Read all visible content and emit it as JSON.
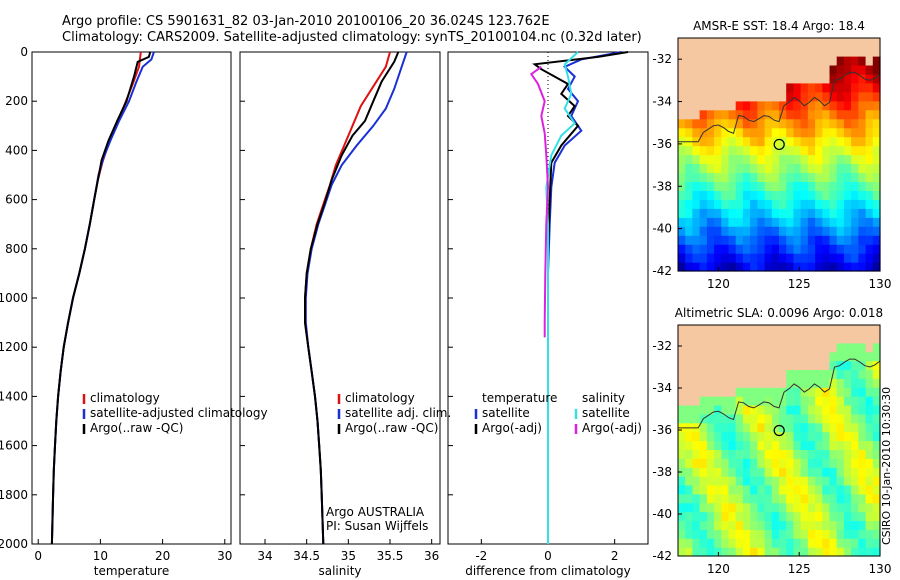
{
  "header": {
    "line1": "Argo profile: CS 5901631_82 03-Jan-2010 20100106_20 36.024S 123.762E",
    "line2": "Climatology: CARS2009. Satellite-adjusted climatology: synTS_20100104.nc (0.32d later)"
  },
  "credit": "CSIRO 10-Jan-2010 10:30:30",
  "colors": {
    "climatology": "#dd1111",
    "satellite": "#1a2fd6",
    "argo": "#000000",
    "sat_salinity": "#33e0e8",
    "argo_adj_salinity": "#dd22dd",
    "land": "#f6c8a2"
  },
  "chart_data": [
    {
      "type": "line",
      "xlabel": "temperature",
      "ylim": [
        2000,
        0
      ],
      "xlim": [
        -1,
        31
      ],
      "xticks": [
        0,
        10,
        20,
        30
      ],
      "yticks": [
        0,
        200,
        400,
        600,
        800,
        1000,
        1200,
        1400,
        1600,
        1800,
        2000
      ],
      "legend": [
        "climatology",
        "satellite-adjusted climatology",
        "Argo(..raw -QC)"
      ],
      "series": [
        {
          "name": "climatology",
          "color": "#dd1111",
          "points": [
            [
              16.5,
              0
            ],
            [
              16.2,
              60
            ],
            [
              15.2,
              130
            ],
            [
              13.8,
              220
            ],
            [
              12.4,
              300
            ],
            [
              11.2,
              380
            ],
            [
              10.3,
              450
            ],
            [
              9.6,
              520
            ],
            [
              9.0,
              600
            ],
            [
              8.3,
              700
            ],
            [
              7.5,
              800
            ],
            [
              6.6,
              900
            ],
            [
              5.6,
              1000
            ],
            [
              4.8,
              1100
            ],
            [
              4.1,
              1200
            ],
            [
              3.6,
              1300
            ],
            [
              3.2,
              1400
            ],
            [
              2.9,
              1500
            ],
            [
              2.7,
              1600
            ],
            [
              2.5,
              1700
            ],
            [
              2.4,
              1800
            ],
            [
              2.3,
              1900
            ],
            [
              2.2,
              2000
            ]
          ]
        },
        {
          "name": "satellite-adjusted climatology",
          "color": "#1a2fd6",
          "points": [
            [
              18.6,
              0
            ],
            [
              18.2,
              30
            ],
            [
              16.8,
              60
            ],
            [
              15.8,
              120
            ],
            [
              14.6,
              200
            ],
            [
              13.0,
              280
            ],
            [
              11.6,
              360
            ],
            [
              10.5,
              430
            ],
            [
              9.7,
              500
            ],
            [
              9.0,
              600
            ],
            [
              8.3,
              700
            ],
            [
              7.5,
              800
            ],
            [
              6.6,
              900
            ],
            [
              5.6,
              1000
            ],
            [
              4.8,
              1100
            ],
            [
              4.1,
              1200
            ],
            [
              3.6,
              1300
            ],
            [
              3.2,
              1400
            ],
            [
              2.9,
              1500
            ],
            [
              2.7,
              1600
            ],
            [
              2.5,
              1700
            ],
            [
              2.4,
              1800
            ],
            [
              2.3,
              1900
            ],
            [
              2.2,
              2000
            ]
          ]
        },
        {
          "name": "Argo(..raw -QC)",
          "color": "#000000",
          "points": [
            [
              18.0,
              0
            ],
            [
              17.8,
              20
            ],
            [
              16.0,
              40
            ],
            [
              15.4,
              100
            ],
            [
              14.2,
              200
            ],
            [
              12.7,
              280
            ],
            [
              11.3,
              360
            ],
            [
              10.2,
              440
            ],
            [
              9.6,
              520
            ],
            [
              9.0,
              600
            ],
            [
              8.3,
              700
            ],
            [
              7.5,
              800
            ],
            [
              6.6,
              900
            ],
            [
              5.6,
              1000
            ],
            [
              4.8,
              1100
            ],
            [
              4.1,
              1200
            ],
            [
              3.6,
              1300
            ],
            [
              3.2,
              1400
            ],
            [
              2.9,
              1500
            ],
            [
              2.7,
              1600
            ],
            [
              2.5,
              1700
            ],
            [
              2.4,
              1800
            ],
            [
              2.3,
              1900
            ],
            [
              2.2,
              2000
            ]
          ]
        }
      ]
    },
    {
      "type": "line",
      "xlabel": "salinity",
      "ylim": [
        2000,
        0
      ],
      "xlim": [
        33.7,
        36.1
      ],
      "xticks": [
        34,
        34.5,
        35,
        35.5,
        36
      ],
      "yticks": [
        0,
        200,
        400,
        600,
        800,
        1000,
        1200,
        1400,
        1600,
        1800,
        2000
      ],
      "legend": [
        "climatology",
        "satellite adj. clim.",
        "Argo(..raw -QC)"
      ],
      "annotation": [
        "Argo AUSTRALIA",
        "PI: Susan Wijffels"
      ],
      "series": [
        {
          "name": "climatology",
          "color": "#dd1111",
          "points": [
            [
              35.5,
              0
            ],
            [
              35.45,
              60
            ],
            [
              35.3,
              140
            ],
            [
              35.15,
              220
            ],
            [
              35.05,
              300
            ],
            [
              34.95,
              380
            ],
            [
              34.85,
              460
            ],
            [
              34.78,
              540
            ],
            [
              34.7,
              620
            ],
            [
              34.62,
              700
            ],
            [
              34.55,
              800
            ],
            [
              34.5,
              900
            ],
            [
              34.48,
              1000
            ],
            [
              34.48,
              1100
            ],
            [
              34.52,
              1200
            ],
            [
              34.56,
              1300
            ],
            [
              34.6,
              1400
            ],
            [
              34.63,
              1500
            ],
            [
              34.65,
              1600
            ],
            [
              34.67,
              1700
            ],
            [
              34.68,
              1800
            ],
            [
              34.69,
              1900
            ],
            [
              34.7,
              2000
            ]
          ]
        },
        {
          "name": "satellite adj. clim.",
          "color": "#1a2fd6",
          "points": [
            [
              35.7,
              0
            ],
            [
              35.65,
              50
            ],
            [
              35.55,
              150
            ],
            [
              35.45,
              230
            ],
            [
              35.3,
              300
            ],
            [
              35.1,
              380
            ],
            [
              34.92,
              460
            ],
            [
              34.8,
              540
            ],
            [
              34.72,
              620
            ],
            [
              34.64,
              700
            ],
            [
              34.56,
              800
            ],
            [
              34.51,
              900
            ],
            [
              34.49,
              1000
            ],
            [
              34.49,
              1100
            ],
            [
              34.52,
              1200
            ],
            [
              34.56,
              1300
            ],
            [
              34.6,
              1400
            ],
            [
              34.63,
              1500
            ],
            [
              34.65,
              1600
            ],
            [
              34.67,
              1700
            ],
            [
              34.68,
              1800
            ],
            [
              34.69,
              1900
            ],
            [
              34.7,
              2000
            ]
          ]
        },
        {
          "name": "Argo(..raw -QC)",
          "color": "#000000",
          "points": [
            [
              35.6,
              0
            ],
            [
              35.55,
              40
            ],
            [
              35.4,
              120
            ],
            [
              35.3,
              200
            ],
            [
              35.2,
              280
            ],
            [
              35.05,
              340
            ],
            [
              34.92,
              420
            ],
            [
              34.8,
              520
            ],
            [
              34.71,
              620
            ],
            [
              34.63,
              700
            ],
            [
              34.55,
              800
            ],
            [
              34.5,
              900
            ],
            [
              34.48,
              1000
            ],
            [
              34.48,
              1100
            ],
            [
              34.52,
              1200
            ],
            [
              34.56,
              1300
            ],
            [
              34.6,
              1400
            ],
            [
              34.63,
              1500
            ],
            [
              34.65,
              1600
            ],
            [
              34.67,
              1700
            ],
            [
              34.68,
              1800
            ],
            [
              34.69,
              1900
            ],
            [
              34.7,
              2000
            ]
          ]
        }
      ]
    },
    {
      "type": "line",
      "xlabel": "difference from climatology",
      "ylim": [
        2000,
        0
      ],
      "xlim": [
        -3,
        3
      ],
      "xticks": [
        -2,
        0,
        2
      ],
      "yticks": [
        0,
        200,
        400,
        600,
        800,
        1000,
        1200,
        1400,
        1600,
        1800,
        2000
      ],
      "legend_groups": [
        {
          "heading": "temperature",
          "items": [
            "satellite",
            "Argo(-adj)"
          ]
        },
        {
          "heading": "salinity",
          "items": [
            "satellite",
            "Argo(-adj)"
          ]
        }
      ],
      "series": [
        {
          "name": "temperature satellite",
          "color": "#1a2fd6",
          "points": [
            [
              2.2,
              0
            ],
            [
              1.0,
              30
            ],
            [
              0.5,
              60
            ],
            [
              0.8,
              100
            ],
            [
              0.6,
              150
            ],
            [
              0.9,
              200
            ],
            [
              0.7,
              260
            ],
            [
              1.0,
              320
            ],
            [
              0.5,
              380
            ],
            [
              0.2,
              450
            ],
            [
              0.1,
              550
            ],
            [
              0.05,
              700
            ],
            [
              0.0,
              900
            ],
            [
              0.0,
              1100
            ],
            [
              0.0,
              1400
            ],
            [
              0.0,
              1700
            ],
            [
              0.0,
              2000
            ]
          ]
        },
        {
          "name": "temperature Argo(-adj)",
          "color": "#000000",
          "points": [
            [
              2.4,
              0
            ],
            [
              1.5,
              20
            ],
            [
              -0.4,
              50
            ],
            [
              -0.2,
              70
            ],
            [
              0.2,
              100
            ],
            [
              0.6,
              130
            ],
            [
              0.4,
              170
            ],
            [
              0.8,
              220
            ],
            [
              0.6,
              260
            ],
            [
              0.9,
              300
            ],
            [
              0.4,
              380
            ],
            [
              0.1,
              450
            ],
            [
              0.05,
              600
            ],
            [
              0.0,
              800
            ],
            [
              0.0,
              1000
            ],
            [
              0.0,
              1300
            ],
            [
              0.0,
              1600
            ],
            [
              0.0,
              2000
            ]
          ]
        },
        {
          "name": "salinity satellite",
          "color": "#33e0e8",
          "points": [
            [
              0.9,
              0
            ],
            [
              0.5,
              50
            ],
            [
              0.6,
              100
            ],
            [
              0.7,
              170
            ],
            [
              0.5,
              230
            ],
            [
              0.8,
              290
            ],
            [
              0.4,
              340
            ],
            [
              0.1,
              420
            ],
            [
              -0.05,
              550
            ],
            [
              0.0,
              700
            ],
            [
              0.0,
              900
            ],
            [
              0.0,
              1100
            ],
            [
              0.0,
              1400
            ],
            [
              0.0,
              1700
            ],
            [
              0.0,
              2000
            ]
          ]
        },
        {
          "name": "salinity Argo(-adj)",
          "color": "#dd22dd",
          "points": [
            [
              -0.2,
              60
            ],
            [
              -0.5,
              90
            ],
            [
              -0.3,
              130
            ],
            [
              -0.1,
              200
            ],
            [
              -0.2,
              260
            ],
            [
              -0.1,
              330
            ],
            [
              -0.05,
              420
            ],
            [
              0.0,
              550
            ],
            [
              -0.05,
              700
            ],
            [
              -0.08,
              900
            ],
            [
              -0.1,
              1100
            ],
            [
              -0.1,
              1160
            ]
          ]
        }
      ]
    },
    {
      "type": "heatmap",
      "title": "AMSR-E SST: 18.4 Argo: 18.4",
      "xlim": [
        117.5,
        130
      ],
      "ylim": [
        -42,
        -31
      ],
      "xticks": [
        120,
        125,
        130
      ],
      "yticks": [
        -32,
        -34,
        -36,
        -38,
        -40,
        -42
      ],
      "marker": {
        "lon": 123.762,
        "lat": -36.024
      },
      "colormap": "jet",
      "values_note": "sea surface temperature field"
    },
    {
      "type": "heatmap",
      "title": "Altimetric SLA: 0.0096 Argo: 0.018",
      "xlim": [
        117.5,
        130
      ],
      "ylim": [
        -42,
        -31
      ],
      "xticks": [
        120,
        125,
        130
      ],
      "yticks": [
        -32,
        -34,
        -36,
        -38,
        -40,
        -42
      ],
      "marker": {
        "lon": 123.762,
        "lat": -36.024
      },
      "colormap": "jet",
      "values_note": "sea level anomaly field"
    }
  ]
}
